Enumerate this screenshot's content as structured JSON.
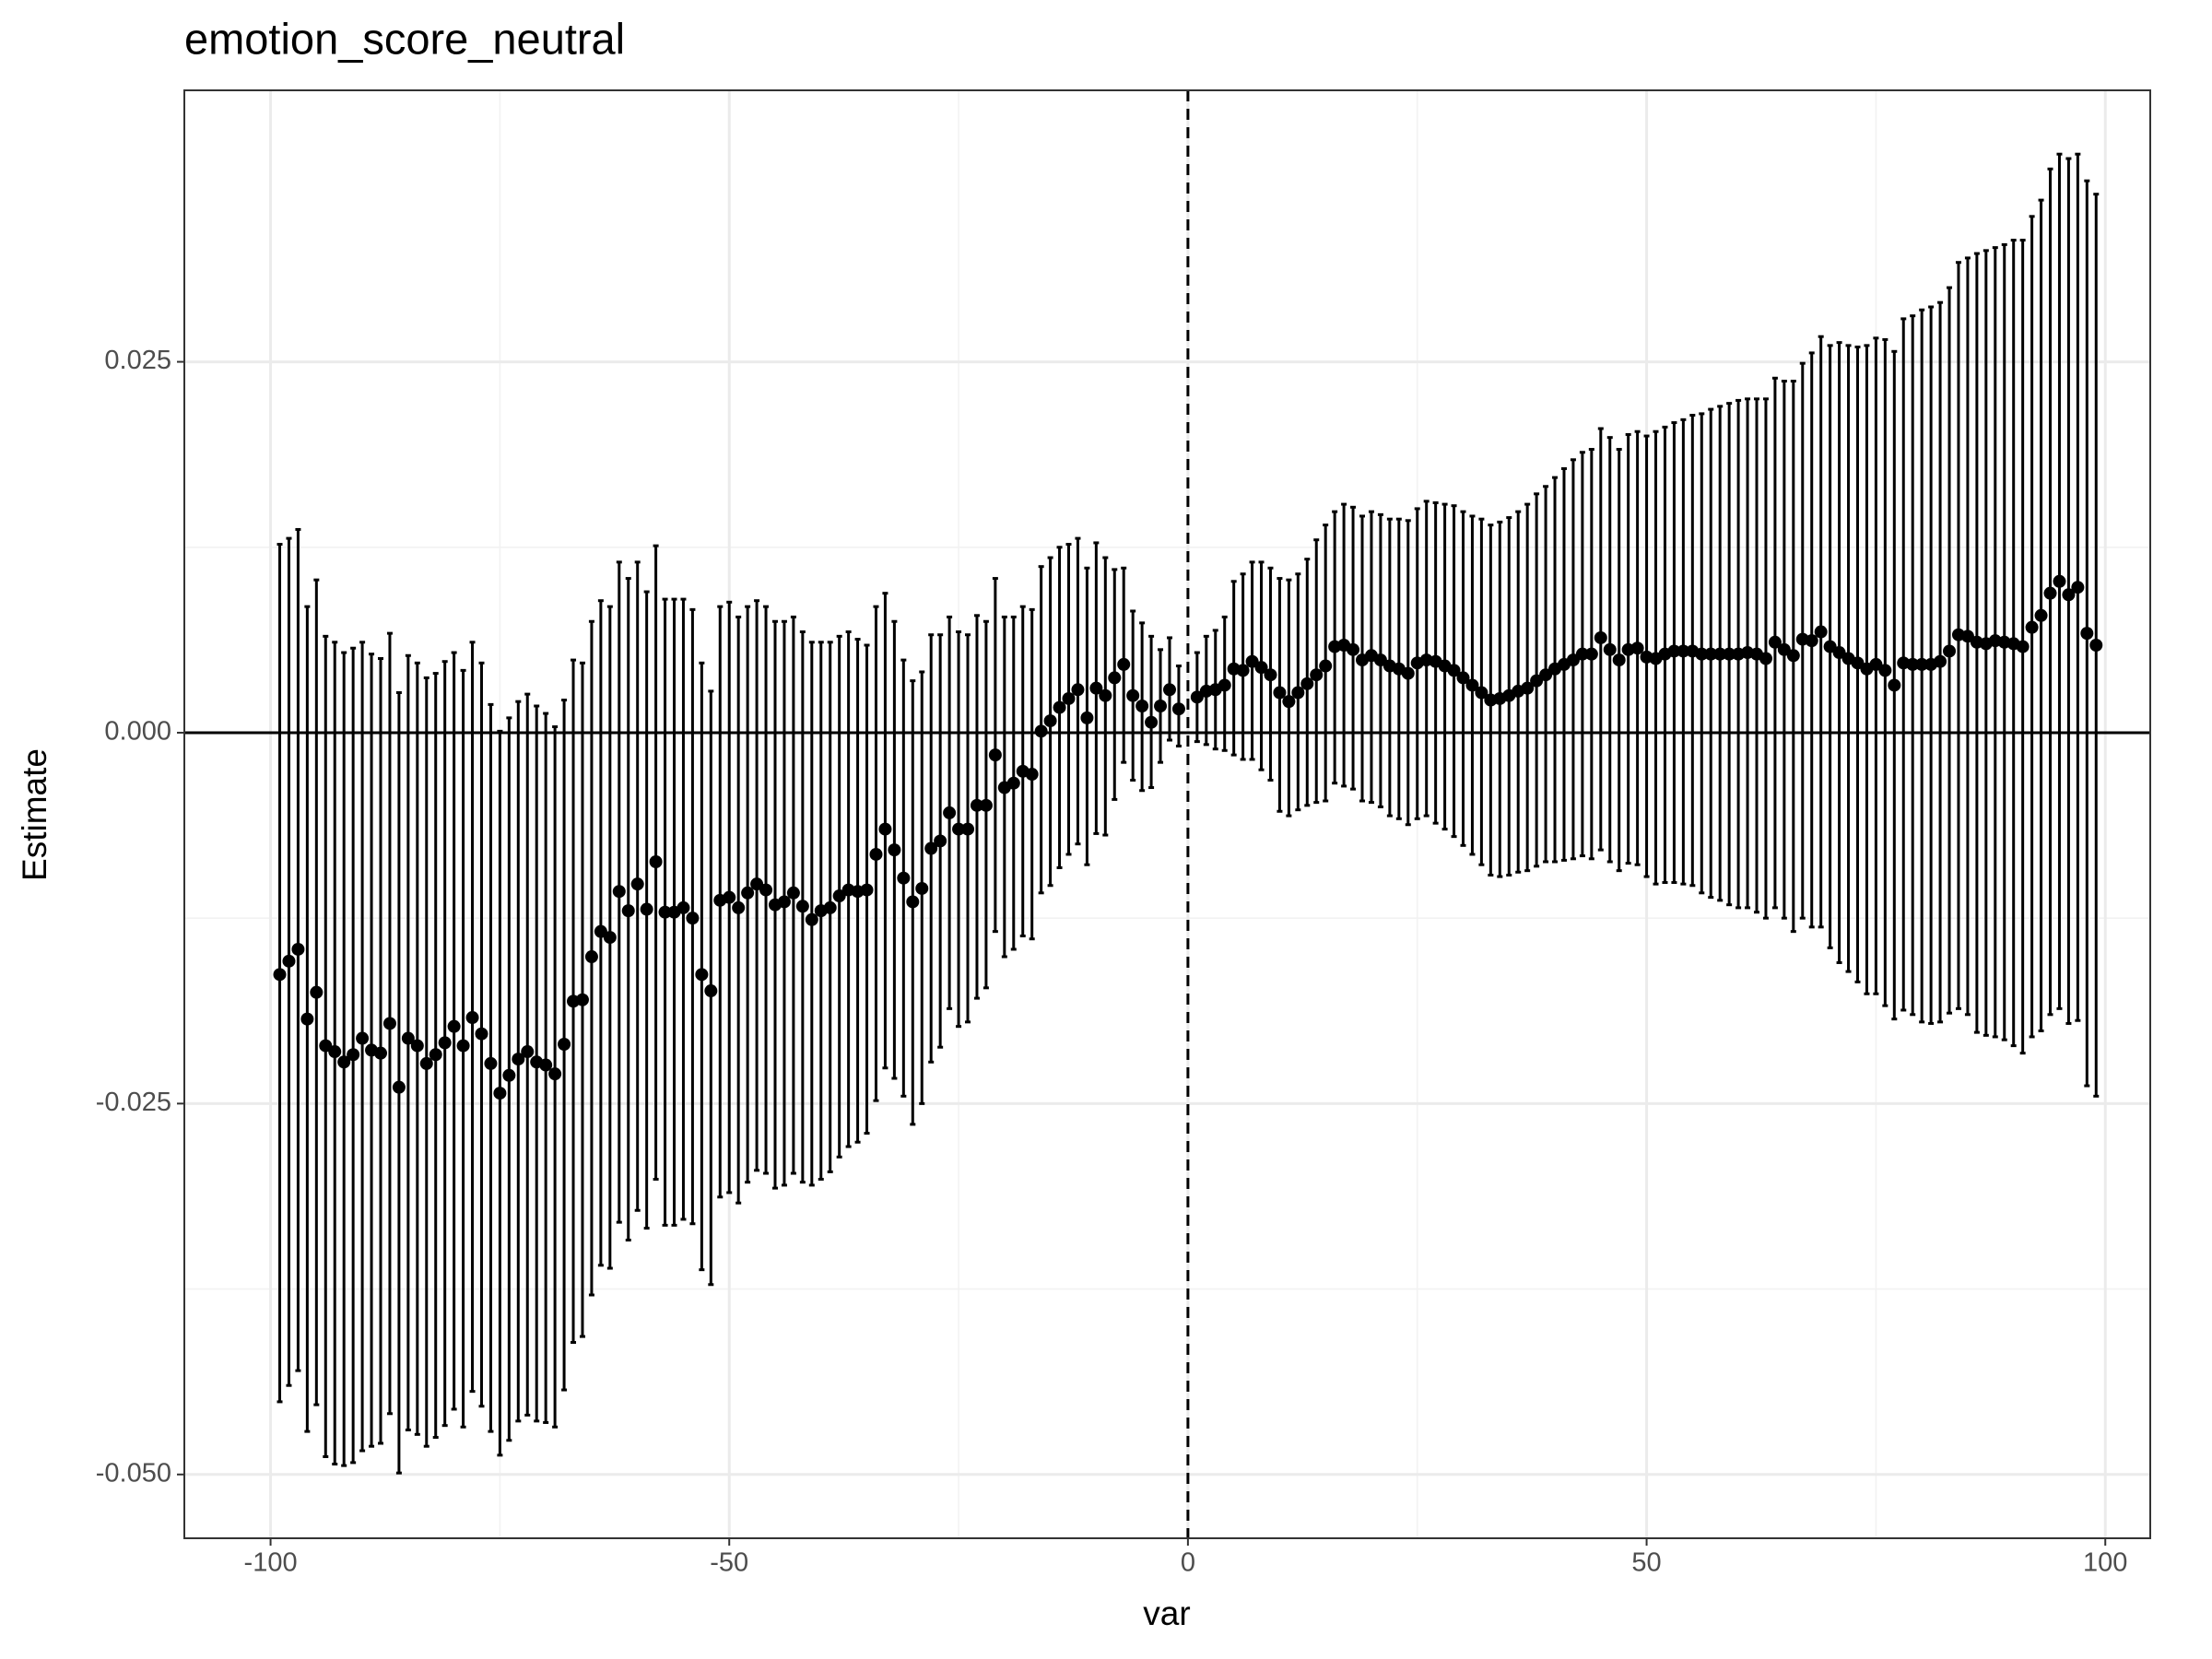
{
  "chart_data": {
    "type": "errorbar",
    "title": "emotion_score_neutral",
    "x_label": "var",
    "y_label": "Estimate",
    "color": "#000000",
    "grid": true,
    "hline": 0,
    "vline": 0,
    "xlim": [
      -109.4,
      104.9
    ],
    "ylim": [
      -0.0543,
      0.0433
    ],
    "xticks": [
      -100,
      -50,
      0,
      50,
      100
    ],
    "yticks": [
      {
        "value": -0.05,
        "label": "-0.050"
      },
      -0.025,
      {
        "value": 0,
        "label": "0.000"
      },
      0.025
    ],
    "x": [
      -99,
      -98,
      -97,
      -96,
      -95,
      -94,
      -93,
      -92,
      -91,
      -90,
      -89,
      -88,
      -87,
      -86,
      -85,
      -84,
      -83,
      -82,
      -81,
      -80,
      -79,
      -78,
      -77,
      -76,
      -75,
      -74,
      -73,
      -72,
      -71,
      -70,
      -69,
      -68,
      -67,
      -66,
      -65,
      -64,
      -63,
      -62,
      -61,
      -60,
      -59,
      -58,
      -57,
      -56,
      -55,
      -54,
      -53,
      -52,
      -51,
      -50,
      -49,
      -48,
      -47,
      -46,
      -45,
      -44,
      -43,
      -42,
      -41,
      -40,
      -39,
      -38,
      -37,
      -36,
      -35,
      -34,
      -33,
      -32,
      -31,
      -30,
      -29,
      -28,
      -27,
      -26,
      -25,
      -24,
      -23,
      -22,
      -21,
      -20,
      -19,
      -18,
      -17,
      -16,
      -15,
      -14,
      -13,
      -12,
      -11,
      -10,
      -9,
      -8,
      -7,
      -6,
      -5,
      -4,
      -3,
      -2,
      -1,
      1,
      2,
      3,
      4,
      5,
      6,
      7,
      8,
      9,
      10,
      11,
      12,
      13,
      14,
      15,
      16,
      17,
      18,
      19,
      20,
      21,
      22,
      23,
      24,
      25,
      26,
      27,
      28,
      29,
      30,
      31,
      32,
      33,
      34,
      35,
      36,
      37,
      38,
      39,
      40,
      41,
      42,
      43,
      44,
      45,
      46,
      47,
      48,
      49,
      50,
      51,
      52,
      53,
      54,
      55,
      56,
      57,
      58,
      59,
      60,
      61,
      62,
      63,
      64,
      65,
      66,
      67,
      68,
      69,
      70,
      71,
      72,
      73,
      74,
      75,
      76,
      77,
      78,
      79,
      80,
      81,
      82,
      83,
      84,
      85,
      86,
      87,
      88,
      89,
      90,
      91,
      92,
      93,
      94,
      95,
      96,
      97,
      98,
      99
    ],
    "values": [
      -0.0163,
      -0.0154,
      -0.0146,
      -0.0193,
      -0.0175,
      -0.0211,
      -0.0215,
      -0.0222,
      -0.0217,
      -0.0206,
      -0.0214,
      -0.0216,
      -0.0196,
      -0.0239,
      -0.0206,
      -0.0211,
      -0.0223,
      -0.0217,
      -0.0209,
      -0.0198,
      -0.0211,
      -0.0192,
      -0.0203,
      -0.0223,
      -0.0243,
      -0.0231,
      -0.022,
      -0.0215,
      -0.0222,
      -0.0224,
      -0.023,
      -0.021,
      -0.0181,
      -0.018,
      -0.0151,
      -0.0134,
      -0.0138,
      -0.0107,
      -0.012,
      -0.0102,
      -0.0119,
      -0.0087,
      -0.0121,
      -0.0121,
      -0.0118,
      -0.0125,
      -0.0163,
      -0.0174,
      -0.0113,
      -0.0111,
      -0.0118,
      -0.0108,
      -0.0102,
      -0.0106,
      -0.0116,
      -0.0114,
      -0.0108,
      -0.0117,
      -0.0126,
      -0.012,
      -0.0118,
      -0.011,
      -0.0106,
      -0.0107,
      -0.0106,
      -0.0082,
      -0.0065,
      -0.0079,
      -0.0098,
      -0.0114,
      -0.0105,
      -0.0078,
      -0.0073,
      -0.0054,
      -0.0065,
      -0.0065,
      -0.0049,
      -0.0049,
      -0.0015,
      -0.0037,
      -0.0034,
      -0.0026,
      -0.0028,
      0.0001,
      0.0008,
      0.0017,
      0.0023,
      0.0029,
      0.001,
      0.003,
      0.0025,
      0.0037,
      0.0046,
      0.0025,
      0.0018,
      0.0007,
      0.0018,
      0.0029,
      0.0016,
      0.0024,
      0.0028,
      0.0029,
      0.0032,
      0.0043,
      0.0042,
      0.0048,
      0.0044,
      0.0039,
      0.0027,
      0.0021,
      0.0027,
      0.0033,
      0.0039,
      0.0045,
      0.0058,
      0.0059,
      0.0056,
      0.0049,
      0.0052,
      0.0049,
      0.0045,
      0.0043,
      0.004,
      0.0047,
      0.0049,
      0.0048,
      0.0045,
      0.0042,
      0.0037,
      0.0032,
      0.0027,
      0.0022,
      0.0023,
      0.0025,
      0.0028,
      0.003,
      0.0035,
      0.0039,
      0.0043,
      0.0046,
      0.0049,
      0.0053,
      0.0053,
      0.0064,
      0.0056,
      0.0049,
      0.0056,
      0.0057,
      0.0051,
      0.005,
      0.0053,
      0.0055,
      0.0055,
      0.0055,
      0.0053,
      0.0053,
      0.0053,
      0.0053,
      0.0053,
      0.0054,
      0.0053,
      0.005,
      0.0061,
      0.0056,
      0.0052,
      0.0063,
      0.0062,
      0.0068,
      0.0058,
      0.0054,
      0.005,
      0.0047,
      0.0043,
      0.0046,
      0.0042,
      0.0032,
      0.0047,
      0.0046,
      0.0046,
      0.0046,
      0.0048,
      0.0055,
      0.0066,
      0.0065,
      0.0061,
      0.006,
      0.0062,
      0.0061,
      0.006,
      0.0058,
      0.0071,
      0.0079,
      0.0094,
      0.0102,
      0.0093,
      0.0098,
      0.0067,
      0.0059
    ],
    "lower": [
      -0.0451,
      -0.044,
      -0.043,
      -0.0471,
      -0.0453,
      -0.0488,
      -0.0493,
      -0.0494,
      -0.0492,
      -0.0484,
      -0.0481,
      -0.0479,
      -0.0459,
      -0.0499,
      -0.047,
      -0.0473,
      -0.0481,
      -0.0475,
      -0.0467,
      -0.0456,
      -0.0468,
      -0.0444,
      -0.0454,
      -0.0471,
      -0.0487,
      -0.0477,
      -0.0464,
      -0.046,
      -0.0464,
      -0.0465,
      -0.0468,
      -0.0443,
      -0.0411,
      -0.0407,
      -0.0379,
      -0.0359,
      -0.0361,
      -0.033,
      -0.0342,
      -0.0322,
      -0.0334,
      -0.0301,
      -0.0332,
      -0.0332,
      -0.0328,
      -0.0331,
      -0.0362,
      -0.0372,
      -0.0313,
      -0.031,
      -0.0317,
      -0.0303,
      -0.0295,
      -0.0297,
      -0.0307,
      -0.0305,
      -0.0297,
      -0.0303,
      -0.0305,
      -0.0301,
      -0.0296,
      -0.0286,
      -0.0279,
      -0.0276,
      -0.027,
      -0.0248,
      -0.0226,
      -0.0233,
      -0.0245,
      -0.0264,
      -0.025,
      -0.0222,
      -0.0212,
      -0.0186,
      -0.0198,
      -0.0195,
      -0.0179,
      -0.0172,
      -0.0134,
      -0.0151,
      -0.0146,
      -0.0137,
      -0.0139,
      -0.0108,
      -0.0103,
      -0.0091,
      -0.0082,
      -0.0075,
      -0.0089,
      -0.0068,
      -0.0069,
      -0.0045,
      -0.002,
      -0.0032,
      -0.0039,
      -0.0037,
      -0.002,
      -0.0005,
      -0.0009,
      -0.0006,
      -0.0008,
      -0.0011,
      -0.0012,
      -0.0015,
      -0.0018,
      -0.0018,
      -0.0025,
      -0.0032,
      -0.0053,
      -0.0056,
      -0.0052,
      -0.0049,
      -0.0047,
      -0.0046,
      -0.0034,
      -0.0036,
      -0.0038,
      -0.0046,
      -0.0047,
      -0.005,
      -0.0056,
      -0.0058,
      -0.0062,
      -0.0058,
      -0.0056,
      -0.0061,
      -0.0065,
      -0.007,
      -0.0076,
      -0.0082,
      -0.0089,
      -0.0096,
      -0.0097,
      -0.0096,
      -0.0094,
      -0.0093,
      -0.009,
      -0.0087,
      -0.0087,
      -0.0086,
      -0.0085,
      -0.0083,
      -0.0085,
      -0.0079,
      -0.0087,
      -0.0093,
      -0.0088,
      -0.0089,
      -0.0097,
      -0.0102,
      -0.0101,
      -0.0101,
      -0.0102,
      -0.0103,
      -0.0108,
      -0.0111,
      -0.0113,
      -0.0116,
      -0.0118,
      -0.0118,
      -0.0121,
      -0.0125,
      -0.0118,
      -0.0125,
      -0.0134,
      -0.0125,
      -0.0131,
      -0.0131,
      -0.0145,
      -0.0155,
      -0.0161,
      -0.0168,
      -0.0176,
      -0.0176,
      -0.0184,
      -0.0193,
      -0.0187,
      -0.019,
      -0.0195,
      -0.0196,
      -0.0195,
      -0.0189,
      -0.0186,
      -0.019,
      -0.0202,
      -0.0204,
      -0.0205,
      -0.0207,
      -0.0211,
      -0.0216,
      -0.0205,
      -0.0201,
      -0.019,
      -0.0186,
      -0.0196,
      -0.0194,
      -0.0238,
      -0.0245
    ],
    "upper": [
      0.0127,
      0.0131,
      0.0137,
      0.0085,
      0.0103,
      0.0065,
      0.0061,
      0.0054,
      0.0057,
      0.0061,
      0.0053,
      0.005,
      0.0067,
      0.0027,
      0.0052,
      0.0047,
      0.0037,
      0.004,
      0.0048,
      0.0054,
      0.0042,
      0.0061,
      0.0047,
      0.0019,
      0.0001,
      0.001,
      0.0021,
      0.0026,
      0.0018,
      0.0013,
      0.0004,
      0.0022,
      0.0049,
      0.0047,
      0.0075,
      0.0089,
      0.0085,
      0.0115,
      0.0104,
      0.0115,
      0.0095,
      0.0126,
      0.009,
      0.009,
      0.009,
      0.0083,
      0.0047,
      0.0028,
      0.0085,
      0.0088,
      0.0078,
      0.0085,
      0.0089,
      0.0085,
      0.0075,
      0.0075,
      0.0078,
      0.0068,
      0.0061,
      0.0061,
      0.0061,
      0.0065,
      0.0068,
      0.0063,
      0.0059,
      0.0085,
      0.0094,
      0.0075,
      0.0049,
      0.0035,
      0.0041,
      0.0066,
      0.0066,
      0.0078,
      0.0068,
      0.0066,
      0.0079,
      0.0075,
      0.0104,
      0.0078,
      0.0078,
      0.0085,
      0.0083,
      0.0112,
      0.0118,
      0.0125,
      0.0127,
      0.0131,
      0.0111,
      0.0128,
      0.0118,
      0.011,
      0.0111,
      0.0082,
      0.0074,
      0.0065,
      0.0056,
      0.0064,
      0.0045,
      0.0054,
      0.0065,
      0.0069,
      0.0078,
      0.0102,
      0.0107,
      0.0115,
      0.0115,
      0.0111,
      0.0104,
      0.0103,
      0.0107,
      0.0117,
      0.013,
      0.014,
      0.0149,
      0.0154,
      0.0152,
      0.0146,
      0.0149,
      0.0147,
      0.0144,
      0.0144,
      0.0143,
      0.0151,
      0.0156,
      0.0155,
      0.0154,
      0.0153,
      0.0149,
      0.0146,
      0.0144,
      0.014,
      0.0142,
      0.0145,
      0.0149,
      0.0154,
      0.0161,
      0.0166,
      0.0172,
      0.0178,
      0.0184,
      0.0189,
      0.0191,
      0.0205,
      0.0199,
      0.0191,
      0.0201,
      0.0203,
      0.02,
      0.0203,
      0.0206,
      0.0209,
      0.0211,
      0.0214,
      0.0215,
      0.0218,
      0.022,
      0.0222,
      0.0224,
      0.0225,
      0.0225,
      0.0225,
      0.0239,
      0.0237,
      0.0237,
      0.0249,
      0.0256,
      0.0267,
      0.0261,
      0.0263,
      0.0261,
      0.026,
      0.0261,
      0.0266,
      0.0265,
      0.0257,
      0.0279,
      0.0281,
      0.0285,
      0.0287,
      0.029,
      0.03,
      0.0317,
      0.032,
      0.0323,
      0.0325,
      0.0327,
      0.0329,
      0.0332,
      0.0332,
      0.0348,
      0.0359,
      0.038,
      0.039,
      0.0387,
      0.039,
      0.0372,
      0.0363
    ]
  }
}
